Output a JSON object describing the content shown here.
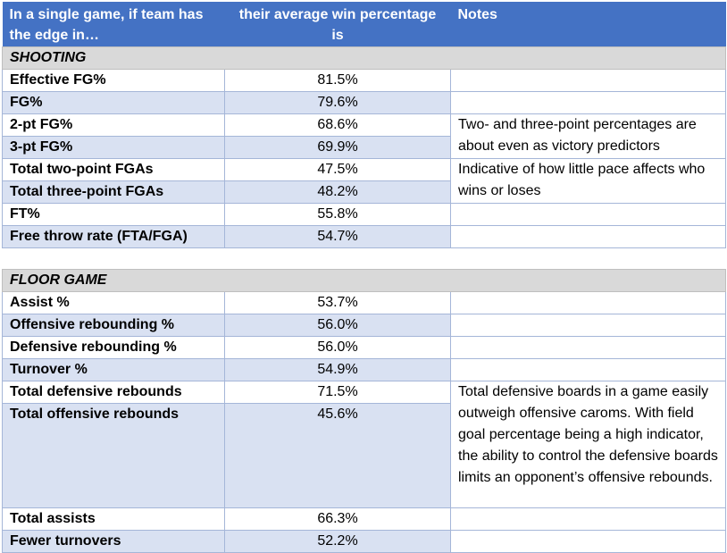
{
  "header": {
    "col1": "In a single game, if team has the edge in…",
    "col2": "their average win percentage is",
    "col3": "Notes"
  },
  "shooting": {
    "title": "SHOOTING",
    "rows": [
      {
        "label": "Effective FG%",
        "value": "81.5%"
      },
      {
        "label": "FG%",
        "value": "79.6%"
      },
      {
        "label": "2-pt FG%",
        "value": "68.6%"
      },
      {
        "label": "3-pt FG%",
        "value": "69.9%"
      },
      {
        "label": "Total two-point FGAs",
        "value": "47.5%"
      },
      {
        "label": "Total three-point FGAs",
        "value": "48.2%"
      },
      {
        "label": "FT%",
        "value": "55.8%"
      },
      {
        "label": "Free throw rate (FTA/FGA)",
        "value": "54.7%"
      }
    ],
    "notes": {
      "fg_pct": "Two- and three-point percentages are about even as victory predictors",
      "fga": "Indicative of how little pace affects who wins or loses"
    }
  },
  "floor_game": {
    "title": "FLOOR GAME",
    "rows": [
      {
        "label": "Assist %",
        "value": "53.7%"
      },
      {
        "label": "Offensive rebounding %",
        "value": "56.0%"
      },
      {
        "label": "Defensive rebounding %",
        "value": "56.0%"
      },
      {
        "label": "Turnover %",
        "value": "54.9%"
      },
      {
        "label": "Total defensive rebounds",
        "value": "71.5%"
      },
      {
        "label": "Total offensive rebounds",
        "value": "45.6%"
      },
      {
        "label": "Total assists",
        "value": "66.3%"
      },
      {
        "label": "Fewer turnovers",
        "value": "52.2%"
      }
    ],
    "notes": {
      "rebounds": "Total defensive boards in a game easily outweigh offensive caroms. With field goal percentage being a high indicator, the ability to control the defensive boards limits an opponent’s offensive rebounds."
    }
  }
}
